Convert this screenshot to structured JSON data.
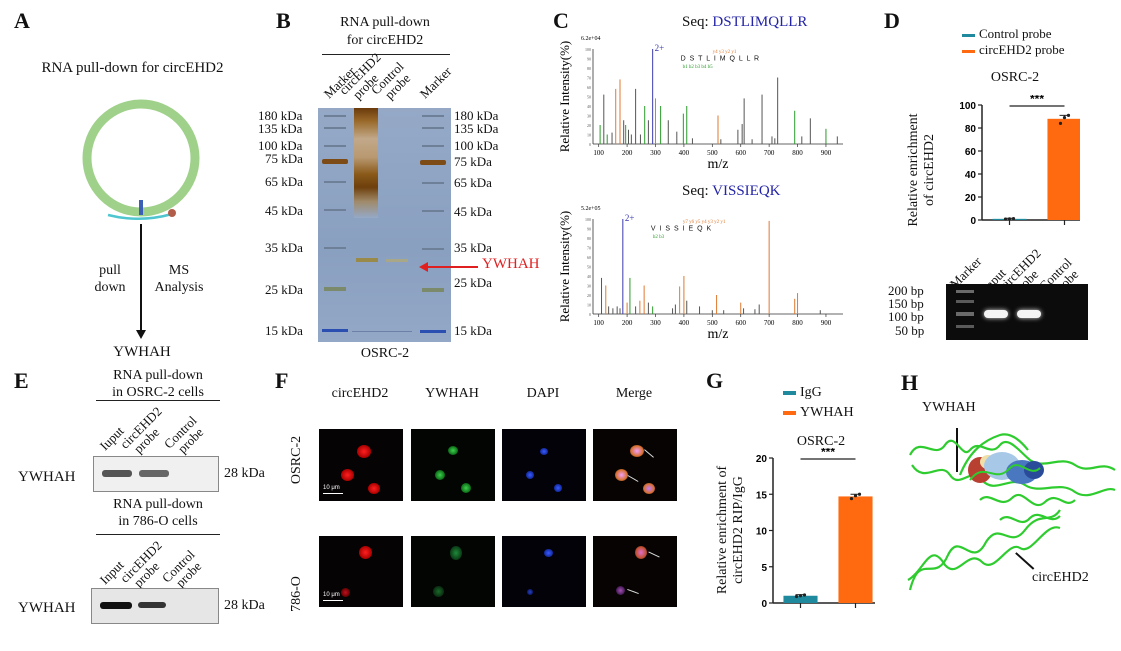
{
  "panels": {
    "A": {
      "label": "A",
      "title": "RNA pull-down for circEHD2",
      "left_text_1": "pull",
      "left_text_2": "down",
      "right_text_1": "MS",
      "right_text_2": "Analysis",
      "result": "YWHAH",
      "colors": {
        "circle": "#9fd18a",
        "probe": "#4fc6cf",
        "bead": "#b25d4a",
        "marker": "#3b5fb5"
      }
    },
    "B": {
      "label": "B",
      "title_1": "RNA pull-down",
      "title_2": "for circEHD2",
      "lanes": [
        "Marker",
        "circEHD2 probe",
        "Control probe",
        "Marker"
      ],
      "lane_lines": [
        [
          "Marker"
        ],
        [
          "circEHD2",
          "probe"
        ],
        [
          "Control",
          "probe"
        ],
        [
          "Marker"
        ]
      ],
      "markers_left": [
        "180 kDa",
        "135 kDa",
        "100 kDa",
        "75 kDa",
        "65 kDa",
        "45 kDa",
        "35 kDa",
        "25 kDa",
        "15 kDa"
      ],
      "markers_right": [
        "180 kDa",
        "135 kDa",
        "100 kDa",
        "75 kDa",
        "65 kDa",
        "45 kDa",
        "35 kDa",
        "25 kDa",
        "15 kDa"
      ],
      "arrow_label": "YWHAH",
      "caption": "OSRC-2",
      "colors": {
        "gel": "#8fa4c4",
        "band": "#8a5a1a",
        "arrow": "#e02020"
      }
    },
    "C": {
      "label": "C",
      "spectra": [
        {
          "seq_prefix": "Seq: ",
          "seq": "DSTLIMQLLR",
          "max_label": "6.2e+04",
          "charge": "2+",
          "ylabel": "Relative Intensity(%)",
          "xlabel": "m/z",
          "xticks": [
            "100",
            "200",
            "300",
            "400",
            "500",
            "600",
            "700",
            "800",
            "900"
          ],
          "yticks": [
            "0",
            "10",
            "20",
            "30",
            "40",
            "50",
            "60",
            "70",
            "80",
            "90",
            "100"
          ],
          "fragment_seq": "D S T L I M Q L L R",
          "y_ions": "y4 y3 y2 y1",
          "b_ions": "b1 b2 b3 b4 b5"
        },
        {
          "seq_prefix": "Seq: ",
          "seq": "VISSIEQK",
          "max_label": "5.2e+05",
          "charge": "2+",
          "ylabel": "Relative Intensity(%)",
          "xlabel": "m/z",
          "xticks": [
            "100",
            "200",
            "300",
            "400",
            "500",
            "600",
            "700",
            "800",
            "900"
          ],
          "yticks": [
            "0",
            "10",
            "20",
            "30",
            "40",
            "50",
            "60",
            "70",
            "80",
            "90",
            "100"
          ],
          "fragment_seq": "V I S S I E Q K",
          "y_ions": "y7 y6 y5 y4 y3 y2 y1",
          "b_ions": "b2 b3"
        }
      ]
    },
    "D": {
      "label": "D",
      "legend": [
        "Control probe",
        "circEHD2 probe"
      ],
      "title": "OSRC-2",
      "ylabel_1": "Relative enrichment",
      "ylabel_2": "of circEHD2",
      "significance": "***",
      "gel_lanes": [
        [
          "Marker"
        ],
        [
          "Input"
        ],
        [
          "circEHD2",
          "probe"
        ],
        [
          "Control",
          "probe"
        ]
      ],
      "gel_markers": [
        "200 bp",
        "150 bp",
        "100 bp",
        "50 bp"
      ]
    },
    "E": {
      "label": "E",
      "blots": [
        {
          "title_1": "RNA pull-down",
          "title_2": "in OSRC-2 cells",
          "lanes": [
            [
              "Iuput"
            ],
            [
              "circEHD2",
              "probe"
            ],
            [
              "Control",
              "probe"
            ]
          ],
          "protein": "YWHAH",
          "size": "28 kDa"
        },
        {
          "title_1": "RNA pull-down",
          "title_2": "in 786-O cells",
          "lanes": [
            [
              "Input"
            ],
            [
              "circEHD2",
              "probe"
            ],
            [
              "Control",
              "probe"
            ]
          ],
          "protein": "YWHAH",
          "size": "28 kDa"
        }
      ]
    },
    "F": {
      "label": "F",
      "columns": [
        "circEHD2",
        "YWHAH",
        "DAPI",
        "Merge"
      ],
      "rows": [
        "OSRC-2",
        "786-O"
      ],
      "scale_bar": "10 μm"
    },
    "G": {
      "label": "G",
      "legend": [
        "IgG",
        "YWHAH"
      ],
      "title": "OSRC-2",
      "ylabel_1": "Relative enrichment of",
      "ylabel_2": "circEHD2  RIP/IgG",
      "significance": "***"
    },
    "H": {
      "label": "H",
      "protein_label": "YWHAH",
      "rna_label": "circEHD2"
    }
  },
  "chart_data": [
    {
      "id": "D-bar",
      "type": "bar",
      "title": "OSRC-2",
      "categories": [
        "Control probe",
        "circEHD2 probe"
      ],
      "values": [
        1,
        88
      ],
      "errors": [
        0.5,
        3
      ],
      "points": [
        [
          0.8,
          1.0,
          1.2
        ],
        [
          84,
          89,
          91
        ]
      ],
      "colors": [
        "#1f8a9e",
        "#ff6a10"
      ],
      "xlabel": "",
      "ylabel": "Relative enrichment of circEHD2",
      "ylim": [
        0,
        100
      ],
      "yticks": [
        0,
        20,
        40,
        60,
        80,
        100
      ],
      "legend": "top",
      "annotation": "***"
    },
    {
      "id": "G-bar",
      "type": "bar",
      "title": "OSRC-2",
      "categories": [
        "IgG",
        "YWHAH"
      ],
      "values": [
        1.0,
        14.7
      ],
      "errors": [
        0.15,
        0.3
      ],
      "points": [
        [
          0.9,
          1.0,
          1.1
        ],
        [
          14.4,
          14.8,
          15.0
        ]
      ],
      "colors": [
        "#1f8a9e",
        "#ff6a10"
      ],
      "xlabel": "",
      "ylabel": "Relative enrichment of circEHD2 RIP/IgG",
      "ylim": [
        0,
        20
      ],
      "yticks": [
        0,
        5,
        10,
        15,
        20
      ],
      "legend": "top",
      "annotation": "***"
    },
    {
      "id": "C-spectrum-1",
      "type": "bar",
      "title": "Seq: DSTLIMQLLR",
      "xlabel": "m/z",
      "ylabel": "Relative Intensity(%)",
      "xlim": [
        80,
        960
      ],
      "ylim": [
        0,
        100
      ],
      "peaks_mz": [
        105,
        118,
        130,
        147,
        160,
        175,
        188,
        195,
        205,
        215,
        230,
        247,
        262,
        275,
        290,
        300,
        318,
        345,
        375,
        398,
        410,
        430,
        520,
        530,
        590,
        605,
        612,
        640,
        675,
        710,
        720,
        730,
        790,
        815,
        845,
        900,
        940
      ],
      "peaks_int": [
        20,
        52,
        10,
        12,
        58,
        68,
        25,
        20,
        15,
        10,
        58,
        10,
        40,
        25,
        100,
        48,
        40,
        25,
        13,
        32,
        40,
        6,
        30,
        5,
        15,
        21,
        48,
        5,
        52,
        8,
        6,
        70,
        35,
        8,
        27,
        16,
        8
      ],
      "peaks_color": [
        "g",
        "k",
        "g",
        "k",
        "o",
        "o",
        "k",
        "g",
        "k",
        "k",
        "k",
        "k",
        "g",
        "k",
        "b",
        "o",
        "g",
        "k",
        "k",
        "g",
        "g",
        "k",
        "o",
        "k",
        "k",
        "k",
        "k",
        "k",
        "k",
        "k",
        "k",
        "k",
        "g",
        "k",
        "k",
        "g",
        "k"
      ]
    },
    {
      "id": "C-spectrum-2",
      "type": "bar",
      "title": "Seq: VISSIEQK",
      "xlabel": "m/z",
      "ylabel": "Relative Intensity(%)",
      "xlim": [
        80,
        960
      ],
      "ylim": [
        0,
        100
      ],
      "peaks_mz": [
        110,
        125,
        135,
        150,
        165,
        175,
        185,
        200,
        210,
        230,
        245,
        260,
        275,
        290,
        360,
        370,
        385,
        400,
        410,
        455,
        500,
        515,
        540,
        600,
        610,
        650,
        665,
        700,
        790,
        800,
        880
      ],
      "peaks_int": [
        38,
        30,
        8,
        6,
        8,
        6,
        100,
        12,
        38,
        8,
        14,
        30,
        12,
        8,
        6,
        10,
        29,
        40,
        14,
        8,
        4,
        20,
        4,
        12,
        6,
        5,
        10,
        98,
        16,
        22,
        4
      ],
      "peaks_color": [
        "k",
        "o",
        "k",
        "k",
        "k",
        "k",
        "b",
        "o",
        "g",
        "k",
        "o",
        "o",
        "k",
        "g",
        "k",
        "k",
        "o",
        "o",
        "k",
        "k",
        "k",
        "o",
        "k",
        "o",
        "k",
        "k",
        "k",
        "o",
        "o",
        "o",
        "k"
      ]
    }
  ]
}
